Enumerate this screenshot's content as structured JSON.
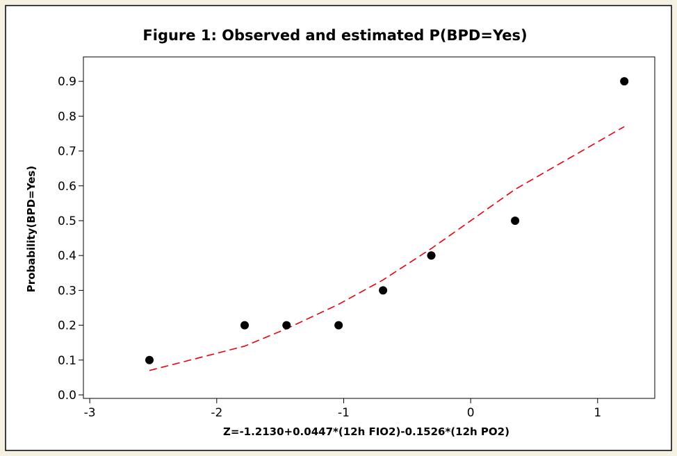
{
  "chart_data": {
    "type": "scatter",
    "title": "Figure 1: Observed and estimated P(BPD=Yes)",
    "xlabel": "Z=-1.2130+0.0447*(12h FIO2)-0.1526*(12h PO2)",
    "ylabel": "Probability(BPD=Yes)",
    "xlim": [
      -3.05,
      1.45
    ],
    "ylim": [
      -0.01,
      0.97
    ],
    "xticks": [
      -3,
      -2,
      -1,
      0,
      1
    ],
    "xtick_labels": [
      "-3",
      "-2",
      "-1",
      "0",
      "1"
    ],
    "yticks": [
      0.0,
      0.1,
      0.2,
      0.3,
      0.4,
      0.5,
      0.6,
      0.7,
      0.8,
      0.9
    ],
    "ytick_labels": [
      "0.0",
      "0.1",
      "0.2",
      "0.3",
      "0.4",
      "0.5",
      "0.6",
      "0.7",
      "0.8",
      "0.9"
    ],
    "grid": false,
    "series": [
      {
        "kind": "points",
        "x": [
          -2.53,
          -1.78,
          -1.45,
          -1.04,
          -0.69,
          -0.31,
          0.35,
          1.21
        ],
        "y": [
          0.1,
          0.2,
          0.2,
          0.2,
          0.3,
          0.4,
          0.5,
          0.9
        ],
        "color": "#000000"
      },
      {
        "kind": "dashed-line",
        "x": [
          -2.53,
          -1.78,
          -1.45,
          -1.04,
          -0.69,
          -0.31,
          0.35,
          1.21
        ],
        "y": [
          0.07,
          0.14,
          0.19,
          0.26,
          0.33,
          0.42,
          0.59,
          0.77
        ],
        "color": "#e8000b"
      }
    ]
  }
}
